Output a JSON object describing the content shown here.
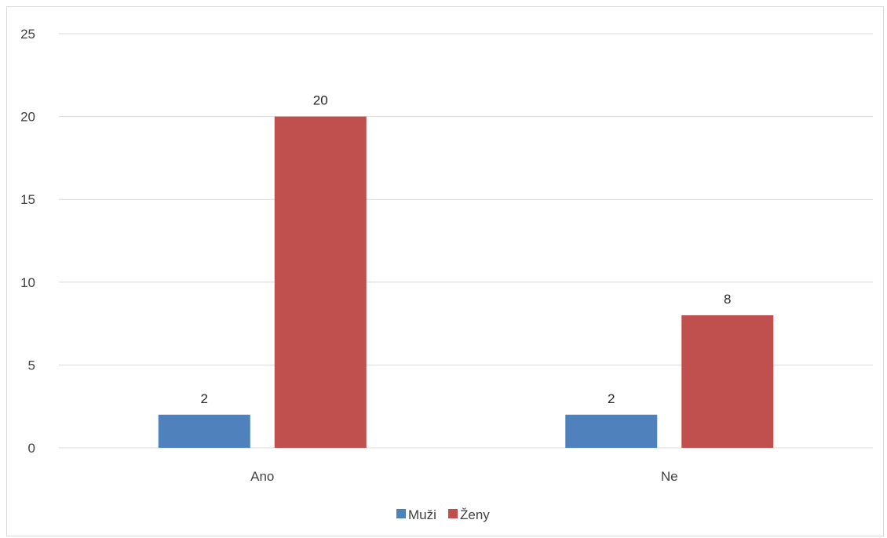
{
  "chart_data": {
    "type": "bar",
    "categories": [
      "Ano",
      "Ne"
    ],
    "series": [
      {
        "name": "Muži",
        "values": [
          2,
          2
        ],
        "color": "#4f81bd"
      },
      {
        "name": "Ženy",
        "values": [
          20,
          8
        ],
        "color": "#c0504d"
      }
    ],
    "ylim": [
      0,
      25
    ],
    "yticks": [
      0,
      5,
      10,
      15,
      20,
      25
    ],
    "grid": true,
    "gridline_color": "#d9d9d9",
    "data_labels": true,
    "legend_position": "bottom",
    "title": "",
    "xlabel": "",
    "ylabel": ""
  }
}
